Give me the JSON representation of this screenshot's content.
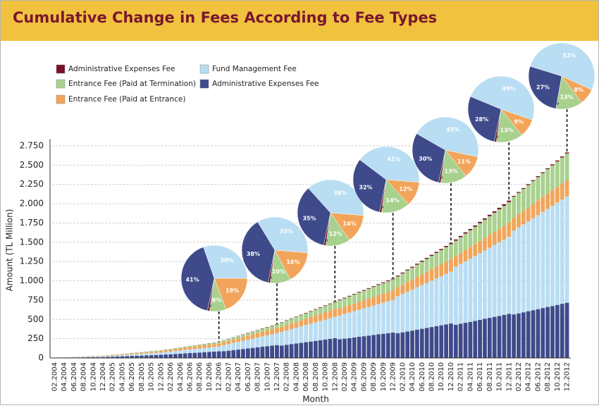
{
  "chart_data": [
    {
      "type": "bar",
      "stacked": true,
      "title": "Cumulative Change in Fees According to Fee Types",
      "ylabel": "Amount (TL Million)",
      "xlabel": "Month",
      "categories": [
        "02.2004",
        null,
        "04.2004",
        null,
        "06.2004",
        null,
        "08.2004",
        null,
        "10.2004",
        null,
        "12.2004",
        null,
        "02.2005",
        null,
        "04.2005",
        null,
        "06.2005",
        null,
        "08.2005",
        null,
        "10.2005",
        null,
        "12.2005",
        null,
        "02.2006",
        null,
        "04.2006",
        null,
        "06.2006",
        null,
        "08.2006",
        null,
        "10.2006",
        null,
        "12.2006",
        null,
        "02.2007",
        null,
        "04.2007",
        null,
        "06.2007",
        null,
        "08.2007",
        null,
        "10.2007",
        null,
        "12.2007",
        null,
        "02.2008",
        null,
        "04.2008",
        null,
        "06.2008",
        null,
        "08.2008",
        null,
        "10.2008",
        null,
        "12.2008",
        null,
        "02.2009",
        null,
        "04.2009",
        null,
        "06.2009",
        null,
        "08.2009",
        null,
        "10.2009",
        null,
        "12.2009",
        null,
        "02.2010",
        null,
        "04.2010",
        null,
        "06.2010",
        null,
        "08.2010",
        null,
        "10.2010",
        null,
        "12.2010",
        null,
        "02.2011",
        null,
        "04.2011",
        null,
        "06.2011",
        null,
        "08.2011",
        null,
        "10.2011",
        null,
        "12.2011",
        null,
        "02.2012",
        null,
        "04.2012",
        null,
        "06.2012",
        null,
        "08.2012",
        null,
        "10.2012",
        null,
        "12.2012"
      ],
      "series": [
        {
          "name": "Administrative Expenses Fee",
          "color": "#7a0f2c",
          "values": [
            0.1,
            0.1,
            0.1,
            0.1,
            0.2,
            0.2,
            0.2,
            0.2,
            0.3,
            0.3,
            0.3,
            0.4,
            0.4,
            0.5,
            0.5,
            0.6,
            0.7,
            0.7,
            0.8,
            0.8,
            0.9,
            0.9,
            1,
            1.1,
            1.2,
            1.3,
            1.4,
            1.5,
            1.6,
            1.6,
            1.7,
            1.8,
            1.9,
            2,
            2.1,
            2.3,
            2.5,
            2.7,
            2.9,
            3.1,
            3.3,
            3.4,
            3.6,
            3.8,
            4,
            4.2,
            4.4,
            4.6,
            4.9,
            5.1,
            5.4,
            5.6,
            5.9,
            6.1,
            6.3,
            6.6,
            6.8,
            7.1,
            7.3,
            7.6,
            7.8,
            8.1,
            8.3,
            8.6,
            8.8,
            9.1,
            9.3,
            9.6,
            9.8,
            10.1,
            10.3,
            10.7,
            11.1,
            11.5,
            11.8,
            12.2,
            12.6,
            13,
            13.4,
            13.8,
            14.1,
            14.5,
            14.9,
            15.4,
            15.8,
            16.3,
            16.7,
            17.2,
            17.7,
            18.1,
            18.6,
            19,
            19.5,
            19.9,
            20.4,
            10.5,
            10.7,
            11,
            11.2,
            11.5,
            11.7,
            12,
            12.2,
            12.5,
            12.7,
            13,
            13.3
          ]
        },
        {
          "name": "Entrance Fee (Paid at Termination)",
          "color": "#a9d18e",
          "values": [
            0,
            1,
            1,
            1,
            1,
            2,
            2,
            2,
            2,
            3,
            3,
            3,
            4,
            4,
            5,
            5,
            6,
            6,
            7,
            7,
            8,
            8,
            9,
            10,
            11,
            12,
            12,
            13,
            14,
            15,
            16,
            16,
            17,
            18,
            19,
            23,
            25,
            27,
            29,
            31,
            33,
            34,
            36,
            38,
            40,
            42,
            44,
            56,
            59,
            62,
            64,
            67,
            70,
            73,
            76,
            79,
            82,
            85,
            88,
            106,
            109,
            113,
            116,
            120,
            123,
            127,
            130,
            134,
            137,
            141,
            144,
            139,
            144,
            149,
            154,
            159,
            164,
            169,
            174,
            179,
            184,
            189,
            194,
            200,
            206,
            212,
            217,
            223,
            229,
            235,
            241,
            247,
            253,
            259,
            265,
            272,
            278,
            285,
            292,
            298,
            305,
            311,
            318,
            325,
            331,
            338,
            345
          ]
        },
        {
          "name": "Entrance Fee (Paid at Entrance)",
          "color": "#f2a55a",
          "values": [
            1,
            2,
            2,
            2,
            3,
            3,
            4,
            4,
            5,
            5,
            6,
            7,
            8,
            9,
            10,
            11,
            12,
            13,
            14,
            16,
            17,
            18,
            19,
            21,
            22,
            24,
            26,
            28,
            29,
            31,
            33,
            35,
            36,
            38,
            40,
            37,
            40,
            43,
            46,
            49,
            52,
            55,
            58,
            61,
            64,
            67,
            70,
            65,
            68,
            72,
            75,
            79,
            82,
            85,
            89,
            92,
            95,
            99,
            102,
            91,
            94,
            97,
            100,
            103,
            106,
            109,
            112,
            115,
            118,
            121,
            124,
            117,
            122,
            126,
            130,
            134,
            139,
            143,
            147,
            151,
            155,
            160,
            164,
            138,
            142,
            147,
            151,
            155,
            159,
            163,
            167,
            171,
            175,
            179,
            184,
            167,
            171,
            175,
            179,
            184,
            188,
            192,
            196,
            200,
            204,
            208,
            212
          ]
        },
        {
          "name": "Fund Management Fee",
          "color": "#b9ddf3",
          "values": [
            2,
            2,
            3,
            4,
            5,
            5,
            6,
            7,
            8,
            8,
            9,
            11,
            12,
            14,
            16,
            18,
            20,
            21,
            23,
            25,
            26,
            28,
            30,
            33,
            35,
            38,
            41,
            44,
            47,
            49,
            52,
            55,
            58,
            60,
            63,
            80,
            87,
            94,
            100,
            107,
            114,
            120,
            127,
            134,
            141,
            147,
            154,
            176,
            185,
            195,
            204,
            213,
            222,
            231,
            241,
            250,
            259,
            268,
            277,
            310,
            320,
            330,
            340,
            351,
            361,
            371,
            381,
            392,
            402,
            412,
            422,
            481,
            498,
            515,
            532,
            550,
            567,
            584,
            602,
            619,
            636,
            653,
            671,
            753,
            775,
            798,
            820,
            842,
            865,
            887,
            910,
            932,
            955,
            977,
            1000,
            1087,
            1114,
            1140,
            1166,
            1193,
            1219,
            1246,
            1272,
            1299,
            1325,
            1351,
            1378
          ]
        },
        {
          "name": "Administrative Expenses Fee",
          "color": "#3e4a8a",
          "values": [
            2,
            3,
            4,
            5,
            6,
            7,
            8,
            9,
            10,
            11,
            12,
            15,
            17,
            19,
            22,
            24,
            27,
            29,
            31,
            34,
            36,
            39,
            41,
            45,
            48,
            52,
            56,
            60,
            64,
            67,
            71,
            75,
            79,
            82,
            86,
            87,
            94,
            102,
            109,
            116,
            124,
            131,
            138,
            146,
            153,
            160,
            167,
            162,
            171,
            180,
            188,
            196,
            205,
            213,
            222,
            230,
            239,
            247,
            256,
            242,
            250,
            258,
            266,
            274,
            282,
            290,
            298,
            306,
            314,
            322,
            330,
            320,
            332,
            344,
            355,
            367,
            378,
            389,
            401,
            413,
            424,
            436,
            447,
            430,
            443,
            456,
            468,
            481,
            494,
            507,
            520,
            533,
            545,
            558,
            571,
            565,
            578,
            592,
            606,
            619,
            633,
            647,
            661,
            674,
            688,
            702,
            716
          ]
        }
      ],
      "ylim": [
        0,
        2800
      ],
      "yticks": [
        0,
        250,
        500,
        750,
        {
          "value": 1000,
          "label": "1.000"
        },
        {
          "value": 1250,
          "label": "1.250"
        },
        {
          "value": 1500,
          "label": "1.500"
        },
        {
          "value": 1750,
          "label": "1.750"
        },
        {
          "value": 2000,
          "label": "2.000"
        },
        {
          "value": 2250,
          "label": "2.250"
        },
        {
          "value": 2500,
          "label": "2.500"
        },
        {
          "value": 2750,
          "label": "2.750"
        }
      ],
      "grid": true
    },
    {
      "type": "pie",
      "values": [
        1,
        8,
        19,
        30,
        41
      ],
      "value_labels": [
        "1%",
        "8%",
        "19%",
        "30%",
        "41%"
      ]
    },
    {
      "type": "pie",
      "values": [
        1,
        10,
        16,
        35,
        38
      ],
      "value_labels": [
        "1%",
        "10%",
        "16%",
        "35%",
        "38%"
      ]
    },
    {
      "type": "pie",
      "values": [
        1,
        12,
        14,
        38,
        35
      ],
      "value_labels": [
        "1%",
        "12%",
        "14%",
        "38%",
        "35%"
      ]
    },
    {
      "type": "pie",
      "values": [
        1,
        14,
        12,
        41,
        32
      ],
      "value_labels": [
        "1%",
        "14%",
        "12%",
        "41%",
        "32%"
      ]
    },
    {
      "type": "pie",
      "values": [
        1,
        13,
        11,
        45,
        30
      ],
      "value_labels": [
        "1%",
        "13%",
        "11%",
        "45%",
        "30%"
      ]
    },
    {
      "type": "pie",
      "values": [
        1,
        13,
        9,
        49,
        28
      ],
      "value_labels": [
        "1%",
        "13%",
        "9%",
        "49%",
        "28%"
      ]
    },
    {
      "type": "pie",
      "values": [
        0,
        13,
        8,
        52,
        27
      ],
      "value_labels": [
        "0%",
        "13%",
        "8%",
        "52%",
        "27%"
      ]
    }
  ]
}
